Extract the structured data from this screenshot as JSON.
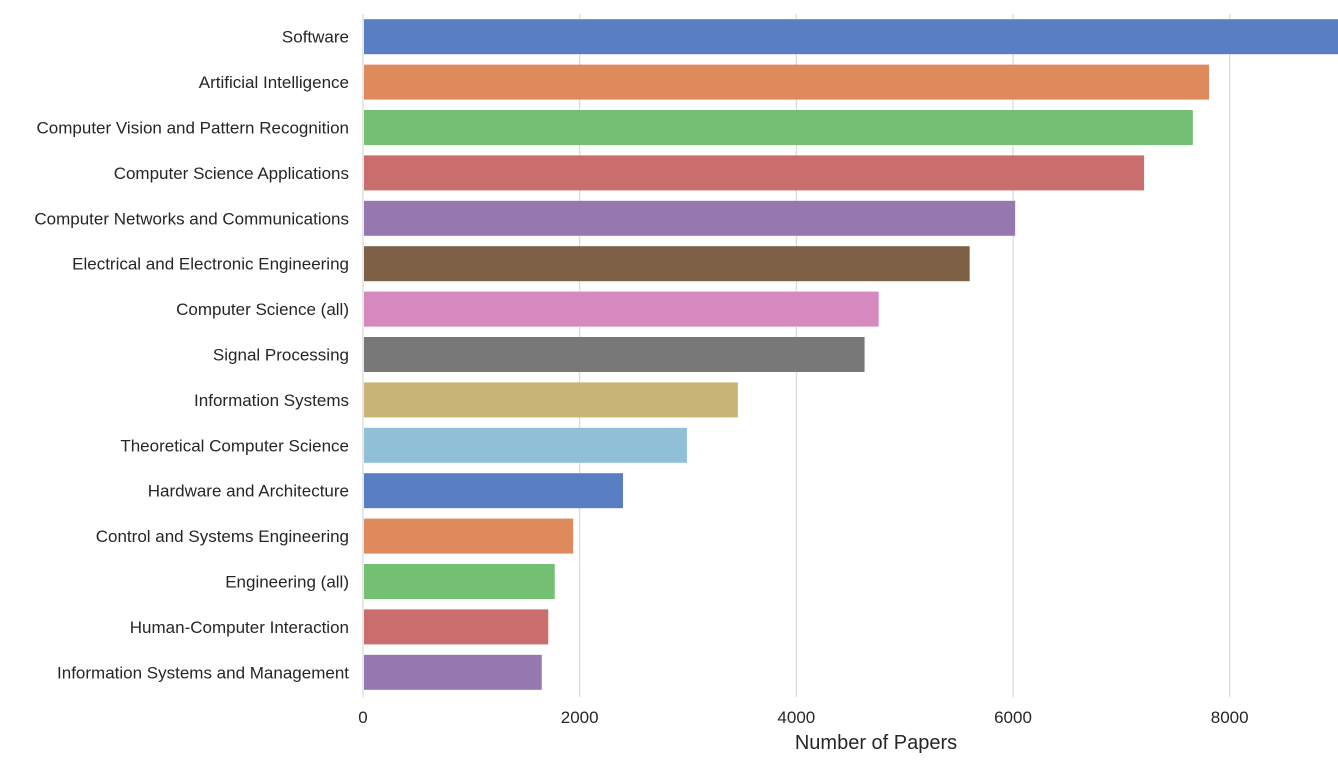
{
  "chart_data": {
    "type": "bar",
    "orientation": "horizontal",
    "title": "",
    "xlabel": "Number of Papers",
    "ylabel": "",
    "xlim": [
      0,
      9000
    ],
    "xticks": [
      0,
      2000,
      4000,
      6000,
      8000
    ],
    "xtick_labels": [
      "0",
      "2000",
      "4000",
      "6000",
      "8000"
    ],
    "grid": true,
    "categories": [
      "Software",
      "Artificial Intelligence",
      "Computer Vision and Pattern Recognition",
      "Computer Science Applications",
      "Computer Networks and Communications",
      "Electrical and Electronic Engineering",
      "Computer Science (all)",
      "Signal Processing",
      "Information Systems",
      "Theoretical Computer Science",
      "Hardware and Architecture",
      "Control and Systems Engineering",
      "Engineering (all)",
      "Human-Computer Interaction",
      "Information Systems and Management"
    ],
    "values": [
      9000,
      7810,
      7660,
      7210,
      6020,
      5600,
      4760,
      4630,
      3460,
      2990,
      2400,
      1940,
      1770,
      1710,
      1650
    ],
    "colors": [
      "#5a7ec3",
      "#de8a5c",
      "#74c072",
      "#c96d6d",
      "#9677ae",
      "#7e6046",
      "#d689bf",
      "#787878",
      "#c8b575",
      "#8fc0d8",
      "#5a7ec3",
      "#de8a5c",
      "#74c072",
      "#c96d6d",
      "#9677ae"
    ]
  }
}
